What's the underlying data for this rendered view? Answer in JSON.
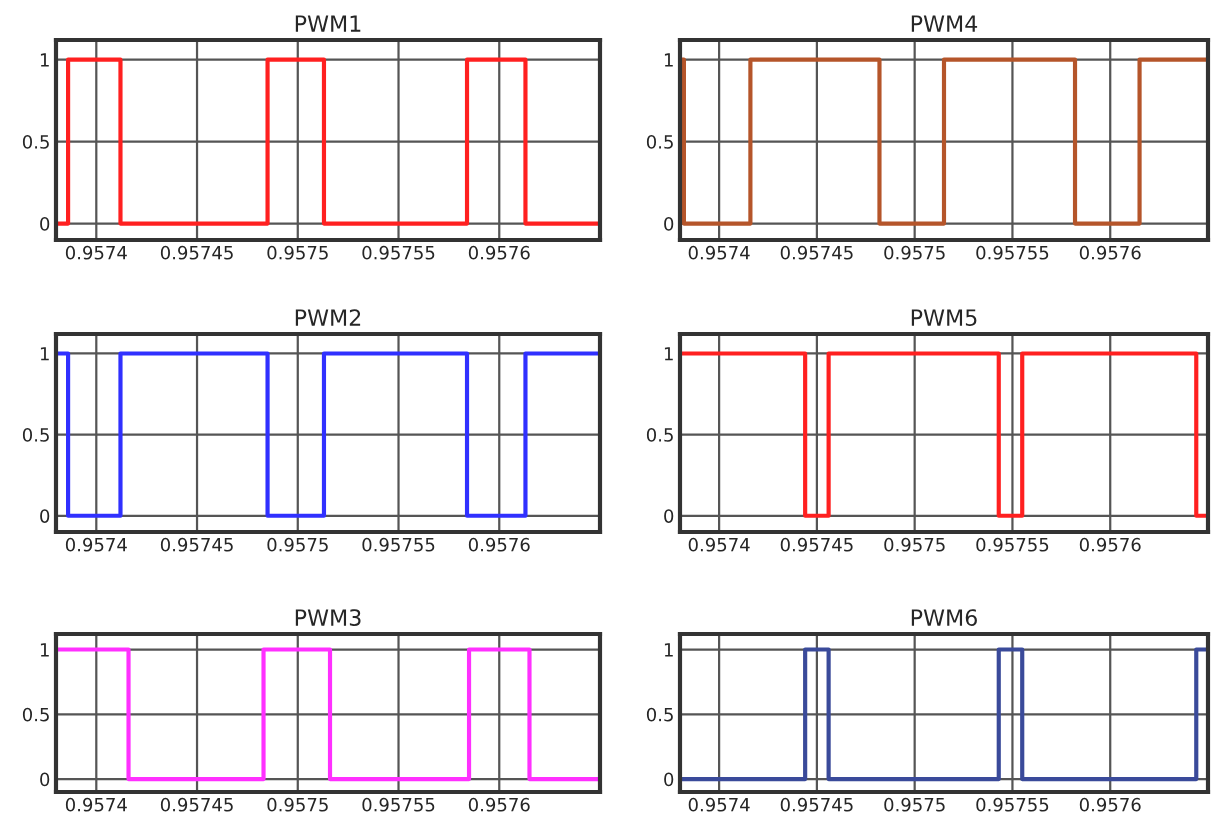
{
  "chart_data": [
    {
      "type": "step",
      "title": "PWM1",
      "xlim": [
        0.95738,
        0.95765
      ],
      "xticks": [
        0.9574,
        0.95745,
        0.9575,
        0.95755,
        0.9576
      ],
      "ylim": [
        -0.1,
        1.12
      ],
      "yticks": [
        0,
        0.5,
        1
      ],
      "grid": true,
      "series": [
        {
          "color": "#ff2020",
          "x": [
            0.95738,
            0.957386,
            0.957412,
            0.957485,
            0.957513,
            0.957584,
            0.957613,
            0.95765
          ],
          "values": [
            0,
            1,
            0,
            1,
            0,
            1,
            0,
            0
          ]
        }
      ]
    },
    {
      "type": "step",
      "title": "PWM4",
      "xlim": [
        0.95738,
        0.95765
      ],
      "xticks": [
        0.9574,
        0.95745,
        0.9575,
        0.95755,
        0.9576
      ],
      "ylim": [
        -0.1,
        1.12
      ],
      "yticks": [
        0,
        0.5,
        1
      ],
      "grid": true,
      "series": [
        {
          "color": "#b5552a",
          "x": [
            0.95738,
            0.957382,
            0.957416,
            0.957482,
            0.957515,
            0.957582,
            0.957615,
            0.95765
          ],
          "values": [
            1,
            0,
            1,
            0,
            1,
            0,
            1,
            1
          ]
        }
      ]
    },
    {
      "type": "step",
      "title": "PWM2",
      "xlim": [
        0.95738,
        0.95765
      ],
      "xticks": [
        0.9574,
        0.95745,
        0.9575,
        0.95755,
        0.9576
      ],
      "ylim": [
        -0.1,
        1.12
      ],
      "yticks": [
        0,
        0.5,
        1
      ],
      "grid": true,
      "series": [
        {
          "color": "#3030ff",
          "x": [
            0.95738,
            0.957386,
            0.957412,
            0.957485,
            0.957513,
            0.957584,
            0.957613,
            0.95765
          ],
          "values": [
            1,
            0,
            1,
            0,
            1,
            0,
            1,
            1
          ]
        }
      ]
    },
    {
      "type": "step",
      "title": "PWM5",
      "xlim": [
        0.95738,
        0.95765
      ],
      "xticks": [
        0.9574,
        0.95745,
        0.9575,
        0.95755,
        0.9576
      ],
      "ylim": [
        -0.1,
        1.12
      ],
      "yticks": [
        0,
        0.5,
        1
      ],
      "grid": true,
      "series": [
        {
          "color": "#ff2020",
          "x": [
            0.95738,
            0.957444,
            0.957456,
            0.957543,
            0.957555,
            0.957644,
            0.95765
          ],
          "values": [
            1,
            0,
            1,
            0,
            1,
            0,
            0
          ]
        }
      ]
    },
    {
      "type": "step",
      "title": "PWM3",
      "xlim": [
        0.95738,
        0.95765
      ],
      "xticks": [
        0.9574,
        0.95745,
        0.9575,
        0.95755,
        0.9576
      ],
      "ylim": [
        -0.1,
        1.12
      ],
      "yticks": [
        0,
        0.5,
        1
      ],
      "grid": true,
      "series": [
        {
          "color": "#ff30ff",
          "x": [
            0.95738,
            0.957416,
            0.957483,
            0.957516,
            0.957585,
            0.957615,
            0.95765
          ],
          "values": [
            1,
            0,
            1,
            0,
            1,
            0,
            0
          ]
        }
      ]
    },
    {
      "type": "step",
      "title": "PWM6",
      "xlim": [
        0.95738,
        0.95765
      ],
      "xticks": [
        0.9574,
        0.95745,
        0.9575,
        0.95755,
        0.9576
      ],
      "ylim": [
        -0.1,
        1.12
      ],
      "yticks": [
        0,
        0.5,
        1
      ],
      "grid": true,
      "series": [
        {
          "color": "#3a4a9a",
          "x": [
            0.95738,
            0.957444,
            0.957456,
            0.957543,
            0.957555,
            0.957644,
            0.95765
          ],
          "values": [
            0,
            1,
            0,
            1,
            0,
            1,
            1
          ]
        }
      ]
    }
  ]
}
